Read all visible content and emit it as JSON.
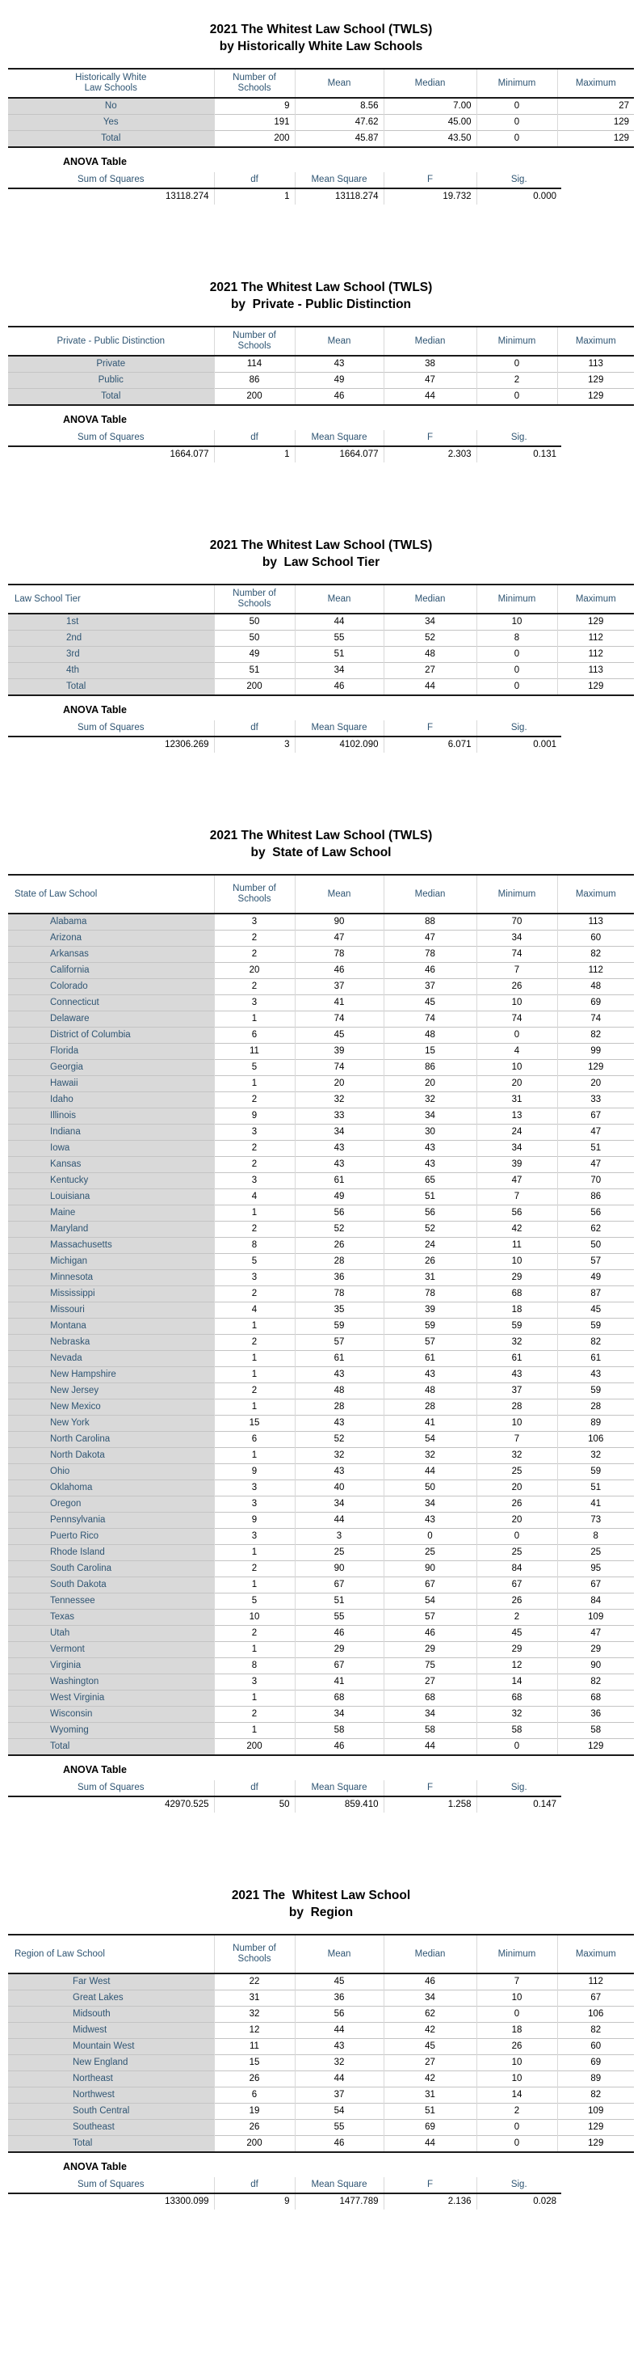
{
  "colors": {
    "header_text": "#2f5573",
    "label_column_bg": "#d9d9d9",
    "row_grid_line": "#c4c4c4",
    "table_border": "#1a1a1a"
  },
  "sections": [
    {
      "title_line1": "2021 The Whitest Law School (TWLS)",
      "title_line2": "by Historically White Law Schools",
      "table": {
        "label_header_lines": [
          "Historically White",
          "Law Schools"
        ],
        "columns": [
          "Number of Schools",
          "Mean",
          "Median",
          "Minimum",
          "Maximum"
        ],
        "rows": [
          [
            "No",
            "9",
            "8.56",
            "7.00",
            "0",
            "27"
          ],
          [
            "Yes",
            "191",
            "47.62",
            "45.00",
            "0",
            "129"
          ],
          [
            "Total",
            "200",
            "45.87",
            "43.50",
            "0",
            "129"
          ]
        ]
      },
      "anova": {
        "title": "ANOVA Table",
        "headers": [
          "Sum of Squares",
          "df",
          "Mean Square",
          "F",
          "Sig."
        ],
        "values": [
          "13118.274",
          "1",
          "13118.274",
          "19.732",
          "0.000"
        ]
      }
    },
    {
      "title_line1": "2021 The Whitest Law School (TWLS)",
      "title_line2": "by  Private - Public Distinction",
      "table": {
        "label_header_lines": [
          "Private - Public Distinction"
        ],
        "columns": [
          "Number of Schools",
          "Mean",
          "Median",
          "Minimum",
          "Maximum"
        ],
        "rows": [
          [
            "Private",
            "114",
            "43",
            "38",
            "0",
            "113"
          ],
          [
            "Public",
            "86",
            "49",
            "47",
            "2",
            "129"
          ],
          [
            "Total",
            "200",
            "46",
            "44",
            "0",
            "129"
          ]
        ]
      },
      "anova": {
        "title": "ANOVA Table",
        "headers": [
          "Sum of Squares",
          "df",
          "Mean Square",
          "F",
          "Sig."
        ],
        "values": [
          "1664.077",
          "1",
          "1664.077",
          "2.303",
          "0.131"
        ]
      }
    },
    {
      "title_line1": "2021 The Whitest Law School (TWLS)",
      "title_line2": "by  Law School Tier",
      "table": {
        "label_header_lines": [
          "Law School Tier"
        ],
        "columns": [
          "Number of Schools",
          "Mean",
          "Median",
          "Minimum",
          "Maximum"
        ],
        "rows": [
          [
            "1st",
            "50",
            "44",
            "34",
            "10",
            "129"
          ],
          [
            "2nd",
            "50",
            "55",
            "52",
            "8",
            "112"
          ],
          [
            "3rd",
            "49",
            "51",
            "48",
            "0",
            "112"
          ],
          [
            "4th",
            "51",
            "34",
            "27",
            "0",
            "113"
          ],
          [
            "Total",
            "200",
            "46",
            "44",
            "0",
            "129"
          ]
        ]
      },
      "anova": {
        "title": "ANOVA Table",
        "headers": [
          "Sum of Squares",
          "df",
          "Mean Square",
          "F",
          "Sig."
        ],
        "values": [
          "12306.269",
          "3",
          "4102.090",
          "6.071",
          "0.001"
        ]
      }
    },
    {
      "title_line1": "2021 The Whitest Law School (TWLS)",
      "title_line2": "by  State of Law School",
      "table": {
        "label_header_lines": [
          "State of Law School"
        ],
        "columns": [
          "Number of Schools",
          "Mean",
          "Median",
          "Minimum",
          "Maximum"
        ],
        "rows": [
          [
            "Alabama",
            "3",
            "90",
            "88",
            "70",
            "113"
          ],
          [
            "Arizona",
            "2",
            "47",
            "47",
            "34",
            "60"
          ],
          [
            "Arkansas",
            "2",
            "78",
            "78",
            "74",
            "82"
          ],
          [
            "California",
            "20",
            "46",
            "46",
            "7",
            "112"
          ],
          [
            "Colorado",
            "2",
            "37",
            "37",
            "26",
            "48"
          ],
          [
            "Connecticut",
            "3",
            "41",
            "45",
            "10",
            "69"
          ],
          [
            "Delaware",
            "1",
            "74",
            "74",
            "74",
            "74"
          ],
          [
            "District of Columbia",
            "6",
            "45",
            "48",
            "0",
            "82"
          ],
          [
            "Florida",
            "11",
            "39",
            "15",
            "4",
            "99"
          ],
          [
            "Georgia",
            "5",
            "74",
            "86",
            "10",
            "129"
          ],
          [
            "Hawaii",
            "1",
            "20",
            "20",
            "20",
            "20"
          ],
          [
            "Idaho",
            "2",
            "32",
            "32",
            "31",
            "33"
          ],
          [
            "Illinois",
            "9",
            "33",
            "34",
            "13",
            "67"
          ],
          [
            "Indiana",
            "3",
            "34",
            "30",
            "24",
            "47"
          ],
          [
            "Iowa",
            "2",
            "43",
            "43",
            "34",
            "51"
          ],
          [
            "Kansas",
            "2",
            "43",
            "43",
            "39",
            "47"
          ],
          [
            "Kentucky",
            "3",
            "61",
            "65",
            "47",
            "70"
          ],
          [
            "Louisiana",
            "4",
            "49",
            "51",
            "7",
            "86"
          ],
          [
            "Maine",
            "1",
            "56",
            "56",
            "56",
            "56"
          ],
          [
            "Maryland",
            "2",
            "52",
            "52",
            "42",
            "62"
          ],
          [
            "Massachusetts",
            "8",
            "26",
            "24",
            "11",
            "50"
          ],
          [
            "Michigan",
            "5",
            "28",
            "26",
            "10",
            "57"
          ],
          [
            "Minnesota",
            "3",
            "36",
            "31",
            "29",
            "49"
          ],
          [
            "Mississippi",
            "2",
            "78",
            "78",
            "68",
            "87"
          ],
          [
            "Missouri",
            "4",
            "35",
            "39",
            "18",
            "45"
          ],
          [
            "Montana",
            "1",
            "59",
            "59",
            "59",
            "59"
          ],
          [
            "Nebraska",
            "2",
            "57",
            "57",
            "32",
            "82"
          ],
          [
            "Nevada",
            "1",
            "61",
            "61",
            "61",
            "61"
          ],
          [
            "New Hampshire",
            "1",
            "43",
            "43",
            "43",
            "43"
          ],
          [
            "New Jersey",
            "2",
            "48",
            "48",
            "37",
            "59"
          ],
          [
            "New Mexico",
            "1",
            "28",
            "28",
            "28",
            "28"
          ],
          [
            "New York",
            "15",
            "43",
            "41",
            "10",
            "89"
          ],
          [
            "North Carolina",
            "6",
            "52",
            "54",
            "7",
            "106"
          ],
          [
            "North Dakota",
            "1",
            "32",
            "32",
            "32",
            "32"
          ],
          [
            "Ohio",
            "9",
            "43",
            "44",
            "25",
            "59"
          ],
          [
            "Oklahoma",
            "3",
            "40",
            "50",
            "20",
            "51"
          ],
          [
            "Oregon",
            "3",
            "34",
            "34",
            "26",
            "41"
          ],
          [
            "Pennsylvania",
            "9",
            "44",
            "43",
            "20",
            "73"
          ],
          [
            "Puerto Rico",
            "3",
            "3",
            "0",
            "0",
            "8"
          ],
          [
            "Rhode Island",
            "1",
            "25",
            "25",
            "25",
            "25"
          ],
          [
            "South Carolina",
            "2",
            "90",
            "90",
            "84",
            "95"
          ],
          [
            "South Dakota",
            "1",
            "67",
            "67",
            "67",
            "67"
          ],
          [
            "Tennessee",
            "5",
            "51",
            "54",
            "26",
            "84"
          ],
          [
            "Texas",
            "10",
            "55",
            "57",
            "2",
            "109"
          ],
          [
            "Utah",
            "2",
            "46",
            "46",
            "45",
            "47"
          ],
          [
            "Vermont",
            "1",
            "29",
            "29",
            "29",
            "29"
          ],
          [
            "Virginia",
            "8",
            "67",
            "75",
            "12",
            "90"
          ],
          [
            "Washington",
            "3",
            "41",
            "27",
            "14",
            "82"
          ],
          [
            "West Virginia",
            "1",
            "68",
            "68",
            "68",
            "68"
          ],
          [
            "Wisconsin",
            "2",
            "34",
            "34",
            "32",
            "36"
          ],
          [
            "Wyoming",
            "1",
            "58",
            "58",
            "58",
            "58"
          ],
          [
            "Total",
            "200",
            "46",
            "44",
            "0",
            "129"
          ]
        ]
      },
      "anova": {
        "title": "ANOVA Table",
        "headers": [
          "Sum of Squares",
          "df",
          "Mean Square",
          "F",
          "Sig."
        ],
        "values": [
          "42970.525",
          "50",
          "859.410",
          "1.258",
          "0.147"
        ]
      }
    },
    {
      "title_line1": "2021 The  Whitest Law School",
      "title_line2": "by  Region",
      "table": {
        "label_header_lines": [
          "Region of Law School"
        ],
        "columns": [
          "Number of Schools",
          "Mean",
          "Median",
          "Minimum",
          "Maximum"
        ],
        "rows": [
          [
            "Far West",
            "22",
            "45",
            "46",
            "7",
            "112"
          ],
          [
            "Great Lakes",
            "31",
            "36",
            "34",
            "10",
            "67"
          ],
          [
            "Midsouth",
            "32",
            "56",
            "62",
            "0",
            "106"
          ],
          [
            "Midwest",
            "12",
            "44",
            "42",
            "18",
            "82"
          ],
          [
            "Mountain West",
            "11",
            "43",
            "45",
            "26",
            "60"
          ],
          [
            "New England",
            "15",
            "32",
            "27",
            "10",
            "69"
          ],
          [
            "Northeast",
            "26",
            "44",
            "42",
            "10",
            "89"
          ],
          [
            "Northwest",
            "6",
            "37",
            "31",
            "14",
            "82"
          ],
          [
            "South Central",
            "19",
            "54",
            "51",
            "2",
            "109"
          ],
          [
            "Southeast",
            "26",
            "55",
            "69",
            "0",
            "129"
          ],
          [
            "Total",
            "200",
            "46",
            "44",
            "0",
            "129"
          ]
        ]
      },
      "anova": {
        "title": "ANOVA Table",
        "headers": [
          "Sum of Squares",
          "df",
          "Mean Square",
          "F",
          "Sig."
        ],
        "values": [
          "13300.099",
          "9",
          "1477.789",
          "2.136",
          "0.028"
        ]
      }
    }
  ]
}
